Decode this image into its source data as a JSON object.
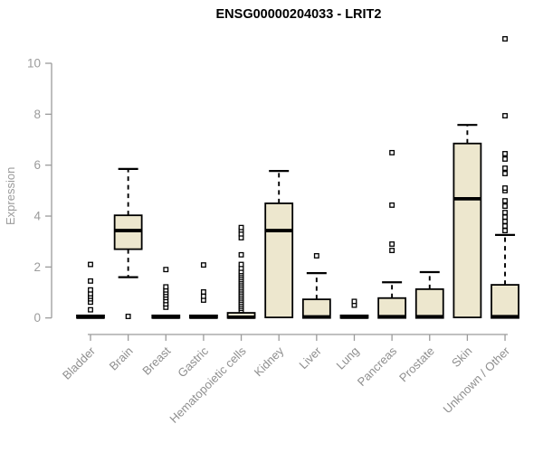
{
  "window": {
    "title": "ENSG00000204033 - LRIT2"
  },
  "chart_data": {
    "type": "boxplot",
    "title": "ENSG00000204033 - LRIT2",
    "xlabel": "",
    "ylabel": "Expression",
    "ylim": [
      0,
      11
    ],
    "yticks": [
      0,
      2,
      4,
      6,
      8,
      10
    ],
    "grid": false,
    "legend": "none",
    "box_fill_color": "#EDE7CE",
    "box_stroke_color": "#000000",
    "axis_color": "#9b9b9b",
    "title_color": "#000000",
    "categories": [
      "Bladder",
      "Brain",
      "Breast",
      "Gastric",
      "Hematopoietic cells",
      "Kidney",
      "Liver",
      "Lung",
      "Pancreas",
      "Prostate",
      "Skin",
      "Unknown / Other"
    ],
    "boxes": [
      {
        "label": "Bladder",
        "q1": 0,
        "median": 0.03,
        "q3": 0.1,
        "whisker_low": 0,
        "whisker_high": 0.1,
        "outliers": [
          0.32,
          0.62,
          0.75,
          0.85,
          0.95,
          1.1,
          1.45,
          2.1
        ]
      },
      {
        "label": "Brain",
        "q1": 2.7,
        "median": 3.43,
        "q3": 4.03,
        "whisker_low": 1.6,
        "whisker_high": 5.85,
        "outliers": [
          0.06
        ]
      },
      {
        "label": "Breast",
        "q1": 0,
        "median": 0.03,
        "q3": 0.1,
        "whisker_low": 0,
        "whisker_high": 0.1,
        "outliers": [
          0.42,
          0.55,
          0.68,
          0.8,
          0.9,
          1.0,
          1.1,
          1.22,
          1.9
        ]
      },
      {
        "label": "Gastric",
        "q1": 0,
        "median": 0.03,
        "q3": 0.1,
        "whisker_low": 0,
        "whisker_high": 0.1,
        "outliers": [
          0.7,
          0.85,
          1.02,
          2.08
        ]
      },
      {
        "label": "Hematopoietic cells",
        "q1": 0,
        "median": 0.03,
        "q3": 0.2,
        "whisker_low": 0,
        "whisker_high": 0.2,
        "outliers": [
          0.3,
          0.38,
          0.46,
          0.54,
          0.62,
          0.7,
          0.78,
          0.86,
          0.94,
          1.02,
          1.1,
          1.18,
          1.26,
          1.34,
          1.42,
          1.5,
          1.58,
          1.66,
          1.74,
          1.82,
          1.95,
          2.1,
          2.48,
          3.15,
          3.3,
          3.45,
          3.55
        ]
      },
      {
        "label": "Kidney",
        "q1": 0.02,
        "median": 3.43,
        "q3": 4.5,
        "whisker_low": 0.02,
        "whisker_high": 5.77,
        "outliers": []
      },
      {
        "label": "Liver",
        "q1": 0,
        "median": 0.04,
        "q3": 0.73,
        "whisker_low": 0,
        "whisker_high": 1.76,
        "outliers": [
          2.44
        ]
      },
      {
        "label": "Lung",
        "q1": 0,
        "median": 0.03,
        "q3": 0.1,
        "whisker_low": 0,
        "whisker_high": 0.1,
        "outliers": [
          0.5,
          0.65
        ]
      },
      {
        "label": "Pancreas",
        "q1": 0,
        "median": 0.05,
        "q3": 0.78,
        "whisker_low": 0,
        "whisker_high": 1.4,
        "outliers": [
          2.65,
          2.9,
          4.43,
          6.49
        ]
      },
      {
        "label": "Prostate",
        "q1": 0,
        "median": 0.05,
        "q3": 1.13,
        "whisker_low": 0,
        "whisker_high": 1.8,
        "outliers": []
      },
      {
        "label": "Skin",
        "q1": 0.02,
        "median": 4.68,
        "q3": 6.85,
        "whisker_low": 0.02,
        "whisker_high": 7.58,
        "outliers": []
      },
      {
        "label": "Unknown / Other",
        "q1": 0,
        "median": 0.05,
        "q3": 1.3,
        "whisker_low": 0,
        "whisker_high": 3.26,
        "outliers": [
          3.43,
          3.61,
          3.79,
          3.96,
          4.14,
          4.39,
          4.6,
          5.0,
          5.1,
          5.67,
          5.88,
          6.24,
          6.45,
          7.94,
          10.96
        ]
      }
    ]
  }
}
